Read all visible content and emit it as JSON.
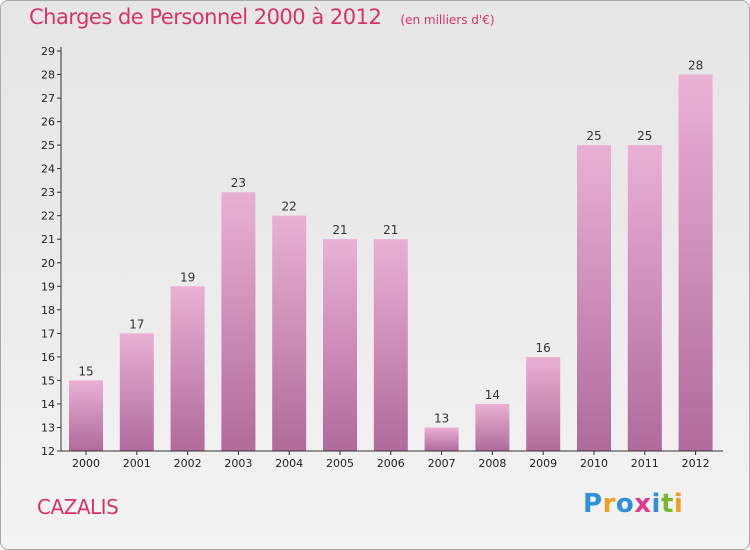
{
  "header": {
    "title": "Charges de Personnel 2000 à 2012",
    "unit": "(en milliers d'€)"
  },
  "footer": {
    "commune": "CAZALIS",
    "logo_letters": [
      "P",
      "r",
      "o",
      "x",
      "i",
      "t",
      "i"
    ]
  },
  "colors": {
    "title": "#d6336c",
    "bar_light": "#eab0d4",
    "bar_dark": "#b06a9c",
    "axis": "#333333"
  },
  "chart_data": {
    "type": "bar",
    "categories": [
      "2000",
      "2001",
      "2002",
      "2003",
      "2004",
      "2005",
      "2006",
      "2007",
      "2008",
      "2009",
      "2010",
      "2011",
      "2012"
    ],
    "values": [
      15,
      17,
      19,
      23,
      22,
      21,
      21,
      13,
      14,
      16,
      25,
      25,
      28
    ],
    "data_labels": [
      "15",
      "17",
      "19",
      "23",
      "22",
      "21",
      "21",
      "13",
      "14",
      "16",
      "25",
      "25",
      "28"
    ],
    "ylim": [
      12,
      29
    ],
    "yticks": [
      "12",
      "13",
      "14",
      "15",
      "16",
      "17",
      "18",
      "19",
      "20",
      "21",
      "22",
      "23",
      "24",
      "25",
      "26",
      "27",
      "28",
      "29"
    ],
    "grid": false,
    "legend": "none",
    "title": "Charges de Personnel 2000 à 2012",
    "xlabel": "",
    "ylabel": ""
  }
}
